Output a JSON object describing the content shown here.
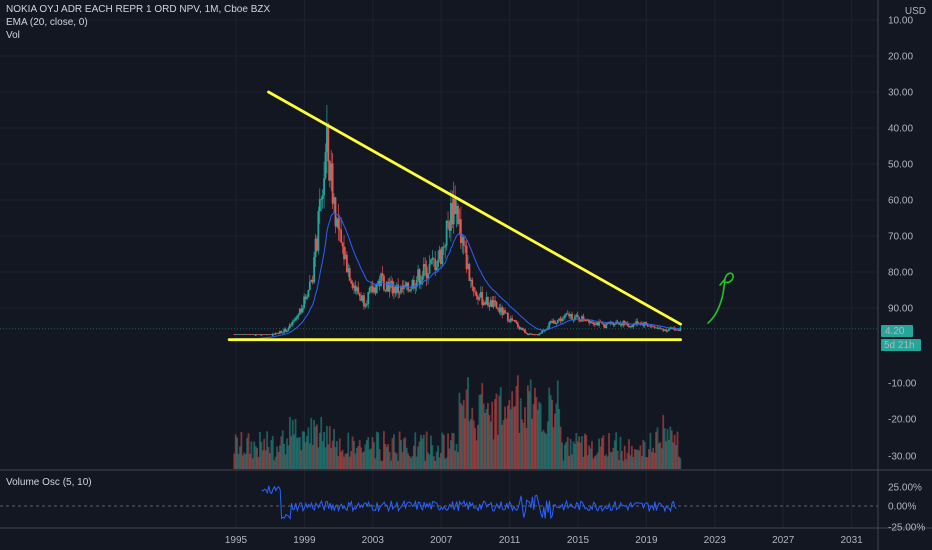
{
  "header": {
    "title": "NOKIA OYJ ADR EACH REPR 1 ORD NPV, 1M, Cboe BZX",
    "ema_label": "EMA (20, close, 0)",
    "vol_label": "Vol",
    "currency": "USD"
  },
  "oscillator": {
    "label": "Volume Osc (5, 10)"
  },
  "price_axis": {
    "ticks": [
      "90.00",
      "80.00",
      "70.00",
      "60.00",
      "50.00",
      "40.00",
      "30.00",
      "20.00",
      "10.00"
    ],
    "volume_ticks": [
      "-10.00",
      "-20.00",
      "-30.00"
    ],
    "last_price": "4.20",
    "countdown": "5d 21h"
  },
  "osc_axis": {
    "ticks": [
      "25.00%",
      "0.00%",
      "-25.00%"
    ]
  },
  "time_axis": {
    "ticks": [
      "1995",
      "1999",
      "2003",
      "2007",
      "2011",
      "2015",
      "2019",
      "2023",
      "2027",
      "2031"
    ]
  },
  "colors": {
    "background": "#131722",
    "up": "#26a69a",
    "down": "#ef5350",
    "ema": "#2962ff",
    "trendline": "#ffff3b",
    "arrow": "#1ec71e",
    "osc": "#2962ff",
    "last_price_badge": "#26a69a"
  },
  "chart_data": {
    "type": "candlestick",
    "title": "NOKIA OYJ ADR EACH REPR 1 ORD NPV, 1M, Cboe BZX",
    "ylim": [
      0,
      90
    ],
    "y_ticks": [
      10,
      20,
      30,
      40,
      50,
      60,
      70,
      80,
      90
    ],
    "x_ticks": [
      1995,
      1999,
      2003,
      2007,
      2011,
      2015,
      2019,
      2023,
      2027,
      2031
    ],
    "approx_close_series": {
      "year": [
        1995.0,
        1996.0,
        1997.0,
        1998.0,
        1998.5,
        1999.0,
        1999.5,
        2000.0,
        2000.3,
        2000.6,
        2001.0,
        2001.5,
        2002.0,
        2002.5,
        2003.0,
        2003.5,
        2004.0,
        2004.5,
        2005.0,
        2005.5,
        2006.0,
        2006.5,
        2007.0,
        2007.5,
        2007.8,
        2008.2,
        2008.6,
        2009.0,
        2009.5,
        2010.0,
        2010.5,
        2011.0,
        2011.5,
        2012.0,
        2012.5,
        2013.0,
        2013.5,
        2014.0,
        2014.5,
        2015.0,
        2015.5,
        2016.0,
        2016.5,
        2017.0,
        2017.5,
        2018.0,
        2018.5,
        2019.0,
        2019.5,
        2020.0,
        2020.5,
        2021.0
      ],
      "close": [
        1.5,
        1.5,
        2.5,
        4,
        7,
        12,
        20,
        40,
        55,
        45,
        30,
        22,
        15,
        12,
        15,
        18,
        16,
        15,
        15,
        18,
        20,
        22,
        25,
        35,
        40,
        30,
        20,
        14,
        12,
        11,
        9,
        7,
        5,
        3,
        2,
        4,
        6,
        7,
        8,
        7,
        7,
        6,
        5,
        6,
        6,
        5,
        6,
        5.5,
        4.5,
        4,
        4.2,
        4.2
      ]
    },
    "trendlines": [
      {
        "name": "descending resistance",
        "from": [
          1996.9,
          70
        ],
        "to": [
          2021.0,
          5.5
        ]
      },
      {
        "name": "horizontal support",
        "from": [
          1994.6,
          1.2
        ],
        "to": [
          2021.0,
          1.2
        ]
      }
    ],
    "last_price": 4.2,
    "volume_osc": {
      "label": "Volume Osc (5, 10)",
      "ylim": [
        -25,
        25
      ],
      "ticks": [
        25,
        0,
        -25
      ]
    }
  }
}
